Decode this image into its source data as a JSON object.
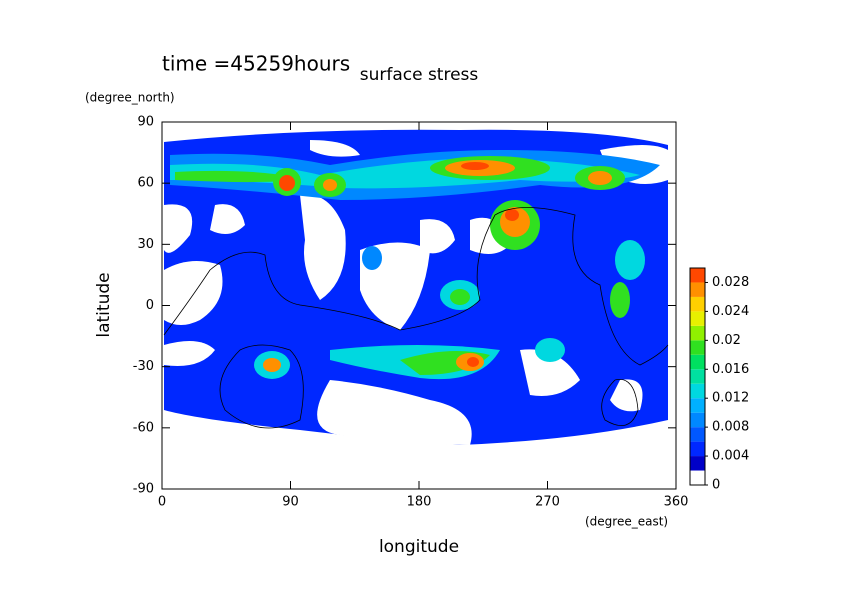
{
  "chart_data": {
    "type": "contour",
    "title": "surface stress",
    "annotation": "time =45259hours",
    "x_label": "longitude",
    "x_unit": "(degree_east)",
    "y_label": "latitude",
    "y_unit": "(degree_north)",
    "xlim": [
      0,
      360
    ],
    "xticks": [
      0,
      90,
      180,
      270,
      360
    ],
    "ylim": [
      -90,
      90
    ],
    "yticks": [
      -90,
      -60,
      -30,
      0,
      30,
      60,
      90
    ],
    "colorbar": {
      "lim": [
        0,
        0.03
      ],
      "ticks": [
        0,
        0.004,
        0.008,
        0.012,
        0.016,
        0.02,
        0.024,
        0.028
      ],
      "colors": [
        "#ffffff",
        "#0000c8",
        "#0028ff",
        "#0058ff",
        "#0088ff",
        "#00b0ff",
        "#00d8e0",
        "#00e0a0",
        "#00e060",
        "#30e020",
        "#90f000",
        "#e8f000",
        "#ffd000",
        "#ff9000",
        "#ff4800"
      ]
    }
  }
}
